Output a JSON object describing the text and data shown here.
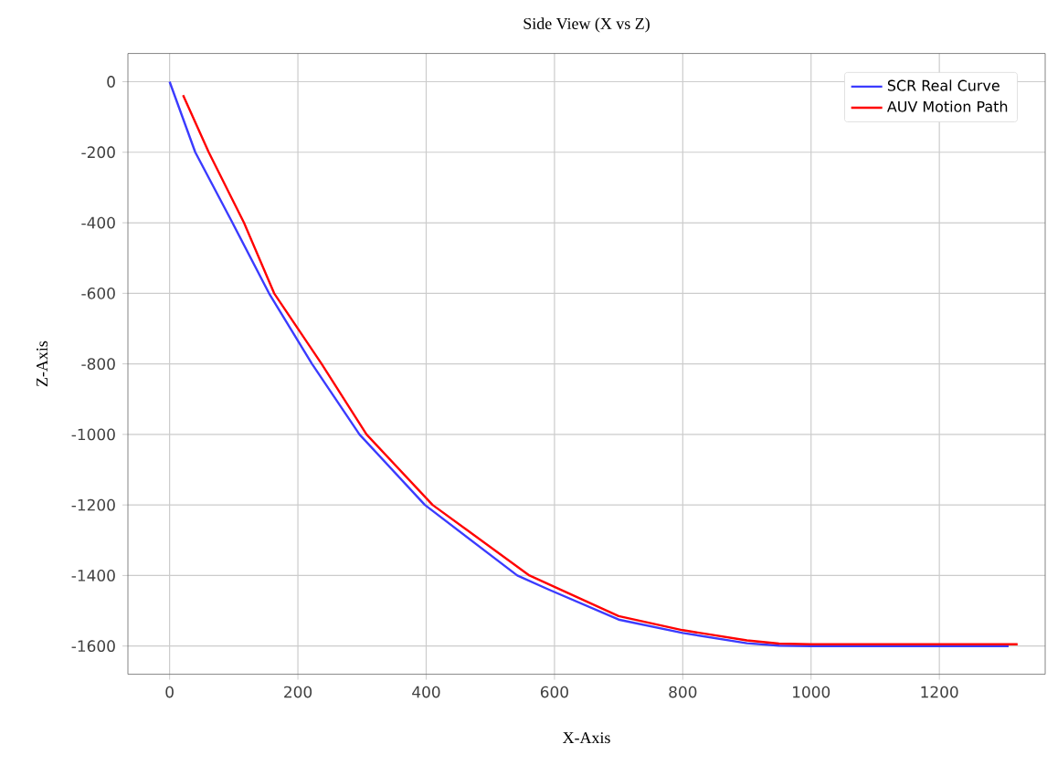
{
  "chart_data": {
    "type": "line",
    "title": "Side View (X vs Z)",
    "xlabel": "X-Axis",
    "ylabel": "Z-Axis",
    "xlim": [
      -65,
      1365
    ],
    "ylim": [
      -1680,
      80
    ],
    "xticks": [
      0,
      200,
      400,
      600,
      800,
      1000,
      1200
    ],
    "yticks": [
      0,
      -200,
      -400,
      -600,
      -800,
      -1000,
      -1200,
      -1400,
      -1600
    ],
    "grid": true,
    "legend": "top right",
    "series": [
      {
        "name": "SCR Real Curve",
        "color": "#3b3bff",
        "x": [
          0,
          40,
          98,
          155,
          222,
          296,
          398,
          542,
          590,
          700,
          800,
          900,
          950,
          1000,
          1308
        ],
        "values": [
          0,
          -200,
          -400,
          -600,
          -800,
          -1000,
          -1200,
          -1400,
          -1439,
          -1525,
          -1563,
          -1592,
          -1599,
          -1600,
          -1600
        ]
      },
      {
        "name": "AUV Motion Path",
        "color": "#ff0000",
        "x": [
          21,
          61,
          116,
          163,
          237,
          307,
          410,
          561,
          700,
          800,
          900,
          950,
          1000,
          1322
        ],
        "values": [
          -38,
          -200,
          -400,
          -600,
          -800,
          -1000,
          -1200,
          -1400,
          -1515,
          -1555,
          -1584,
          -1593,
          -1595,
          -1595
        ]
      }
    ]
  }
}
